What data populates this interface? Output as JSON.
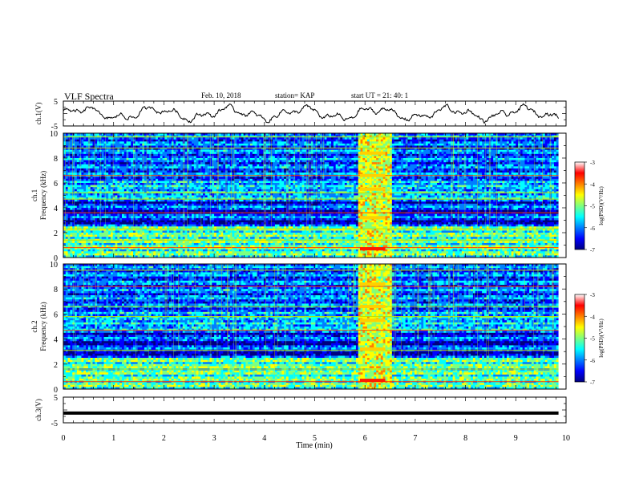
{
  "header": {
    "title": "VLF Spectra",
    "date": "Feb. 10, 2018",
    "station": "station= KAP",
    "start": "start  UT  =   21: 40: 1"
  },
  "chart_data": [
    {
      "type": "line",
      "name": "ch1-waveform",
      "ylabel": "ch.1(V)",
      "ylim": [
        -5,
        5
      ],
      "yticks": [
        "5",
        "-5"
      ],
      "xlim": [
        0,
        10
      ],
      "x_end": 9.85,
      "note_shape": "noisy waveform oscillating roughly between -3 and 3 V"
    },
    {
      "type": "heatmap",
      "name": "ch1-spectrogram",
      "ylabel": "ch.1\nFrequency (kHz)",
      "ylim": [
        0,
        10
      ],
      "yticks": [
        "0",
        "2",
        "4",
        "6",
        "8",
        "10"
      ],
      "xlim": [
        0,
        10
      ],
      "x_end": 9.85,
      "burst_interval_min": [
        5.9,
        6.5
      ],
      "colorbar": {
        "label": "log(PSD)(V²/Hz)",
        "range": [
          -7,
          -3
        ],
        "ticks": [
          "-3",
          "-4",
          "-5",
          "-6",
          "-7"
        ]
      }
    },
    {
      "type": "heatmap",
      "name": "ch2-spectrogram",
      "ylabel": "ch.2\nFrequency (kHz)",
      "ylim": [
        0,
        10
      ],
      "yticks": [
        "0",
        "2",
        "4",
        "6",
        "8",
        "10"
      ],
      "xlim": [
        0,
        10
      ],
      "x_end": 9.85,
      "burst_interval_min": [
        5.9,
        6.5
      ],
      "colorbar": {
        "label": "log(PSD)(V²/Hz)",
        "range": [
          -7,
          -3
        ],
        "ticks": [
          "-3",
          "-4",
          "-5",
          "-6",
          "-7"
        ]
      }
    },
    {
      "type": "line",
      "name": "ch3-trace",
      "ylabel": "ch.3(V)",
      "ylim": [
        -5,
        5
      ],
      "yticks": [
        "5",
        "-5"
      ],
      "xlim": [
        0,
        10
      ],
      "x_end": 9.85,
      "value": -1.2,
      "xlabel": "Time (min)",
      "xticks": [
        "0",
        "1",
        "2",
        "3",
        "4",
        "5",
        "6",
        "7",
        "8",
        "9",
        "10"
      ]
    }
  ],
  "colors": {
    "jet": [
      "#00007f",
      "#0000ff",
      "#007fff",
      "#00ffff",
      "#7fff7f",
      "#ffff00",
      "#ff7f00",
      "#ff0000",
      "#7f0000"
    ]
  }
}
